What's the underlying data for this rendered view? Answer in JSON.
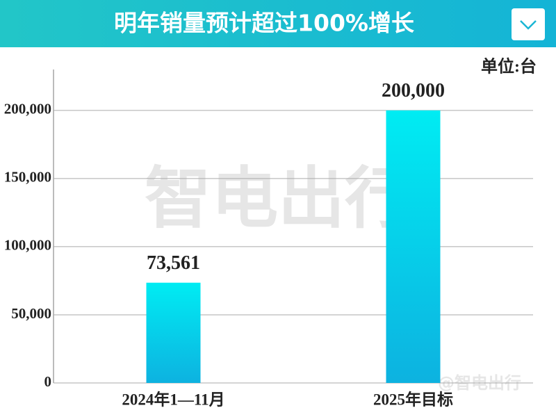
{
  "chart_data": {
    "type": "bar",
    "title": "明年销量预计超过100%增长",
    "unit": "单位:台",
    "watermark": "智电出行",
    "credit": "@智电出行",
    "categories": [
      "2024年1—11月",
      "2025年目标"
    ],
    "values": [
      73561,
      200000
    ],
    "value_labels": [
      "73,561",
      "200,000"
    ],
    "gradient": [
      "#00ecf3",
      "#0db2e0"
    ],
    "ylim": [
      0,
      230000
    ],
    "yticks": [
      0,
      {
        "value": 50000,
        "label": "50,000"
      },
      {
        "value": 100000,
        "label": "100,000"
      },
      {
        "value": 150000,
        "label": "150,000"
      },
      {
        "value": 200000,
        "label": "200,000"
      }
    ],
    "grid": true
  }
}
